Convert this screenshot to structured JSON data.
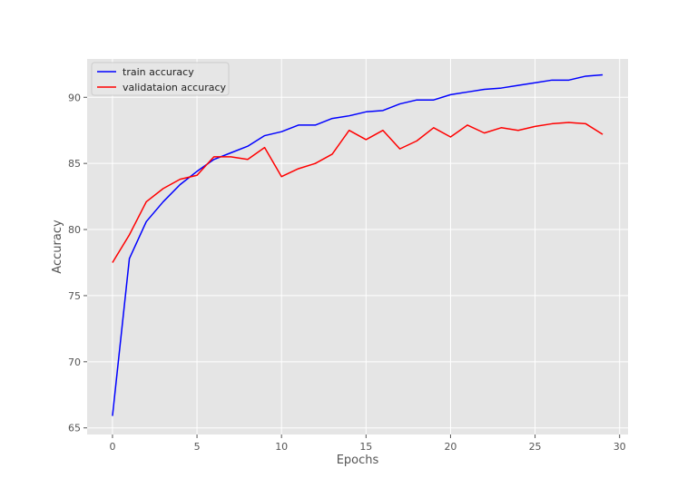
{
  "chart_data": {
    "type": "line",
    "title": "",
    "xlabel": "Epochs",
    "ylabel": "Accuracy",
    "xlim": [
      -1.5,
      30.5
    ],
    "ylim": [
      64.5,
      92.9
    ],
    "xticks": [
      0,
      5,
      10,
      15,
      20,
      25,
      30
    ],
    "yticks": [
      65,
      70,
      75,
      80,
      85,
      90
    ],
    "grid": true,
    "legend_position": "upper-left",
    "x": [
      0,
      1,
      2,
      3,
      4,
      5,
      6,
      7,
      8,
      9,
      10,
      11,
      12,
      13,
      14,
      15,
      16,
      17,
      18,
      19,
      20,
      21,
      22,
      23,
      24,
      25,
      26,
      27,
      28,
      29
    ],
    "series": [
      {
        "name": "train accuracy",
        "color": "#0000ff",
        "values": [
          65.9,
          77.8,
          80.6,
          82.1,
          83.4,
          84.4,
          85.3,
          85.8,
          86.3,
          87.1,
          87.4,
          87.9,
          87.9,
          88.4,
          88.6,
          88.9,
          89.0,
          89.5,
          89.8,
          89.8,
          90.2,
          90.4,
          90.6,
          90.7,
          90.9,
          91.1,
          91.3,
          91.3,
          91.6,
          91.7
        ]
      },
      {
        "name": "validataion accuracy",
        "color": "#ff0000",
        "values": [
          77.5,
          79.6,
          82.1,
          83.1,
          83.8,
          84.1,
          85.5,
          85.5,
          85.3,
          86.2,
          84.0,
          84.6,
          85.0,
          85.7,
          87.5,
          86.8,
          87.5,
          86.1,
          86.7,
          87.7,
          87.0,
          87.9,
          87.3,
          87.7,
          87.5,
          87.8,
          88.0,
          88.1,
          88.0,
          87.2
        ]
      }
    ]
  }
}
